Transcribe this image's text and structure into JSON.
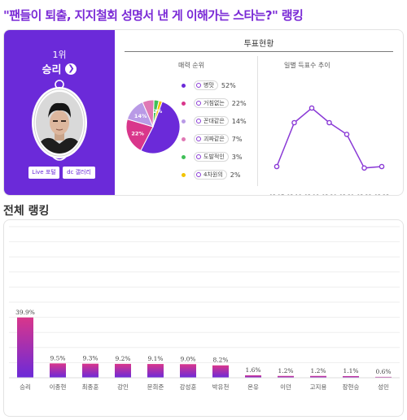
{
  "headline": "\"팬들이 퇴출, 지지철회 성명서 낸 게 이해가는 스타는?\" 랭킹",
  "top_rank": {
    "rank_label": "1위",
    "name": "승리",
    "buttons": [
      "Live 포털",
      "dc 갤러리"
    ]
  },
  "vote_status": {
    "title": "투표현황",
    "charm_title": "매력 순위",
    "trend_title": "일별 득표수 추이"
  },
  "section_title": "전체 랭킹",
  "colors": {
    "brand": "#6b2ad9",
    "headline": "#7a2ad6",
    "line": "#8a3ad6"
  },
  "chart_data": [
    {
      "type": "pie",
      "title": "매력 순위",
      "categories": [
        "병맛",
        "거침없는",
        "꼰대같은",
        "괴짜같은",
        "도발적인",
        "4차원의"
      ],
      "values": [
        52,
        22,
        14,
        7,
        3,
        2
      ],
      "colors": [
        "#6b2ad9",
        "#d9368b",
        "#b99ae6",
        "#e078b4",
        "#3fbf57",
        "#f2c400"
      ],
      "slice_labels": [
        "",
        "22%",
        "14%",
        "",
        "",
        "2%"
      ]
    },
    {
      "type": "line",
      "title": "일별 득표수 추이",
      "x": [
        "03.17",
        "03.18",
        "03.19",
        "03.20",
        "03.21",
        "03.22",
        "03.23"
      ],
      "values": [
        1,
        4,
        5,
        4,
        3.2,
        0.9,
        1
      ],
      "ylim": [
        0,
        6
      ],
      "y_unit": "relative (no y axis printed)"
    },
    {
      "type": "bar",
      "title": "전체 랭킹",
      "categories": [
        "승리",
        "이종현",
        "최종훈",
        "강인",
        "문희준",
        "강성훈",
        "박유천",
        "온유",
        "이던",
        "고지용",
        "장현승",
        "성민"
      ],
      "values": [
        39.9,
        9.5,
        9.3,
        9.2,
        9.1,
        9.0,
        8.2,
        1.6,
        1.2,
        1.2,
        1.1,
        0.6
      ],
      "value_labels": [
        "39.9%",
        "9.5%",
        "9.3%",
        "9.2%",
        "9.1%",
        "9.0%",
        "8.2%",
        "1.6%",
        "1.2%",
        "1.2%",
        "1.1%",
        "0.6%"
      ],
      "ylim": [
        0,
        100
      ],
      "grid": true
    }
  ]
}
